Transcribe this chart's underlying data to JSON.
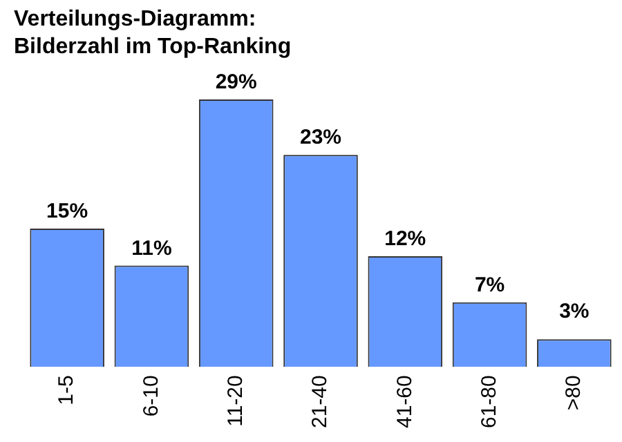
{
  "chart_data": {
    "type": "bar",
    "title": "Verteilungs-Diagramm:\nBilderzahl im Top-Ranking",
    "relative": false,
    "categories": [
      "1-5",
      "6-10",
      "11-20",
      "21-40",
      "41-60",
      "61-80",
      ">80"
    ],
    "values": [
      15,
      11,
      29,
      23,
      12,
      7,
      3
    ],
    "value_labels": [
      "15%",
      "11%",
      "29%",
      "23%",
      "12%",
      "7%",
      "3%"
    ],
    "color": "#6699ff",
    "grid": false,
    "legend": false
  }
}
